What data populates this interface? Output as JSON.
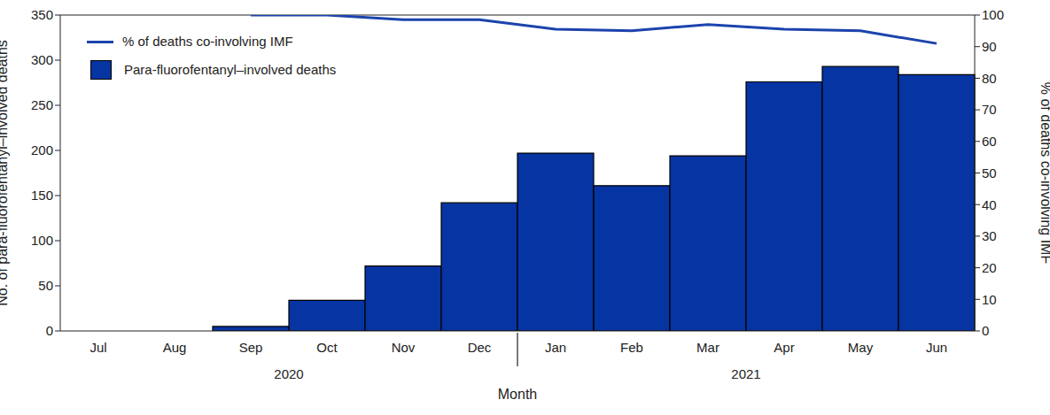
{
  "chart_data": {
    "type": "bar",
    "categories": [
      "Jul",
      "Aug",
      "Sep",
      "Oct",
      "Nov",
      "Dec",
      "Jan",
      "Feb",
      "Mar",
      "Apr",
      "May",
      "Jun"
    ],
    "x_groups": [
      {
        "label": "2020",
        "categories": [
          "Jul",
          "Aug",
          "Sep",
          "Oct",
          "Nov",
          "Dec"
        ]
      },
      {
        "label": "2021",
        "categories": [
          "Jan",
          "Feb",
          "Mar",
          "Apr",
          "May",
          "Jun"
        ]
      }
    ],
    "xlabel": "Month",
    "ylabel": "No. of para-fluorofentanyl–involved deaths",
    "y2label": "% of deaths co-involving IMF",
    "series": [
      {
        "name": "% of deaths co-involving IMF",
        "type": "line",
        "axis": "y2",
        "color": "#1c43ad",
        "values": [
          null,
          null,
          100,
          100,
          98.5,
          98.5,
          95.5,
          95,
          97,
          95.5,
          95,
          91
        ]
      },
      {
        "name": "Para-fluorofentanyl–involved deaths",
        "type": "bar",
        "color": "#0634a2",
        "values": [
          0,
          0,
          5,
          34,
          72,
          142,
          197,
          161,
          194,
          276,
          293,
          284
        ]
      }
    ],
    "ylim": [
      0,
      350
    ],
    "yticks": [
      0,
      50,
      100,
      150,
      200,
      250,
      300,
      350
    ],
    "y2lim": [
      0,
      100
    ],
    "y2ticks": [
      0,
      10,
      20,
      30,
      40,
      50,
      60,
      70,
      80,
      90,
      100
    ],
    "legend": "upper left",
    "grid": false
  }
}
